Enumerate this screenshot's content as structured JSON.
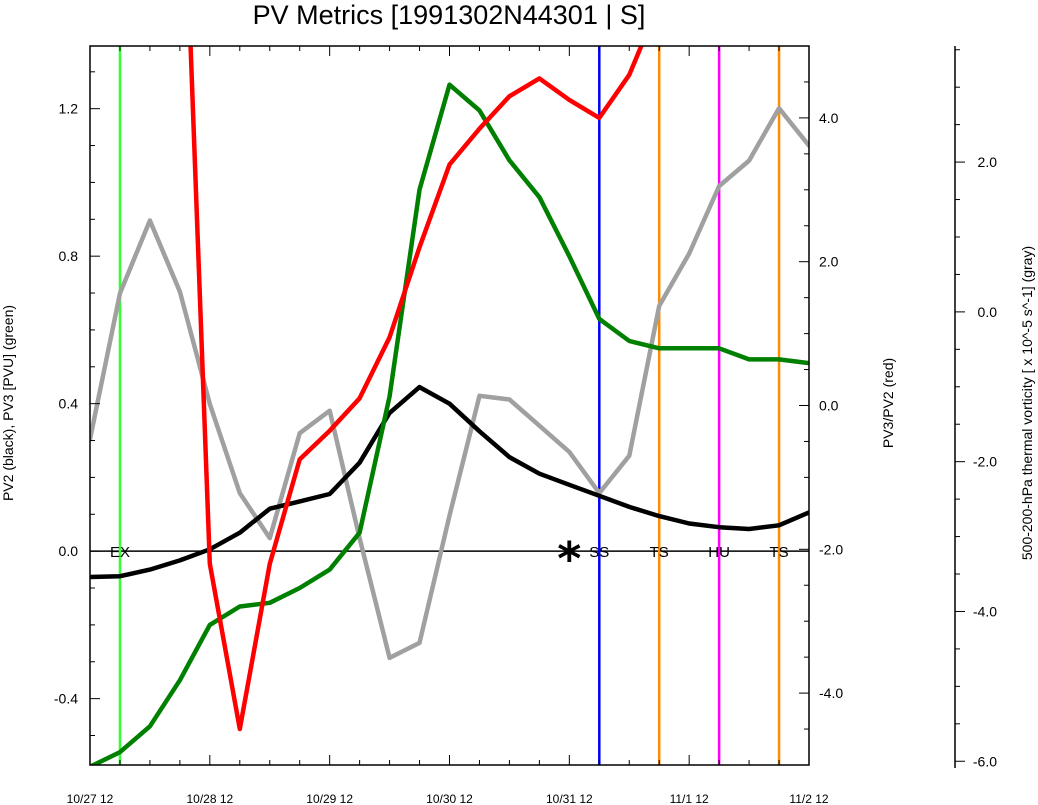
{
  "chart_data": {
    "type": "line",
    "title": "PV Metrics [1991302N44301 | S]",
    "x_tick_labels": [
      "10/27 12",
      "10/28 12",
      "10/29 12",
      "10/30 12",
      "10/31 12",
      "11/1 12",
      "11/2 12"
    ],
    "x_range": [
      0,
      6
    ],
    "axes": {
      "left": {
        "label": "PV2 (black), PV3 [PVU] (green)",
        "range": [
          -0.58,
          1.37
        ],
        "ticks": [
          "-0.4",
          "0.0",
          "0.4",
          "0.8",
          "1.2"
        ]
      },
      "right": {
        "label": "PV3/PV2 (red)",
        "range": [
          -5.0,
          5.0
        ],
        "ticks": [
          "-4.0",
          "-2.0",
          "0.0",
          "2.0",
          "4.0"
        ]
      },
      "right2": {
        "label": "500-200-hPa thermal vorticity [ x 10^-5 s^-1] (gray)",
        "range": [
          -6.05,
          3.55
        ],
        "ticks": [
          "-6.0",
          "-4.0",
          "-2.0",
          "0.0",
          "2.0"
        ]
      }
    },
    "x": [
      0,
      0.25,
      0.5,
      0.75,
      1.0,
      1.25,
      1.5,
      1.75,
      2.0,
      2.25,
      2.5,
      2.75,
      3.0,
      3.25,
      3.5,
      3.75,
      4.0,
      4.25,
      4.5,
      4.75,
      5.0,
      5.25,
      5.5,
      5.75,
      6.0
    ],
    "series": [
      {
        "name": "PV2",
        "color": "#000000",
        "axis": "left",
        "values": [
          -0.07,
          -0.068,
          -0.05,
          -0.025,
          0.005,
          0.05,
          0.115,
          0.135,
          0.155,
          0.24,
          0.375,
          0.445,
          0.4,
          0.325,
          0.255,
          0.21,
          0.18,
          0.15,
          0.12,
          0.095,
          0.075,
          0.065,
          0.06,
          0.07,
          0.105
        ]
      },
      {
        "name": "PV3",
        "color": "#008000",
        "axis": "left",
        "values": [
          -0.585,
          -0.545,
          -0.475,
          -0.35,
          -0.2,
          -0.15,
          -0.14,
          -0.1,
          -0.05,
          0.05,
          0.42,
          0.98,
          1.265,
          1.195,
          1.06,
          0.96,
          0.8,
          0.63,
          0.57,
          0.55,
          0.55,
          0.55,
          0.52,
          0.52,
          0.51
        ]
      },
      {
        "name": "PV3/PV2",
        "color": "#ff0000",
        "axis": "right",
        "values": [
          null,
          null,
          null,
          9.0,
          -2.2,
          -4.5,
          -2.2,
          -0.75,
          -0.35,
          0.1,
          0.95,
          2.2,
          3.35,
          3.85,
          4.3,
          4.55,
          4.25,
          4.0,
          4.6,
          5.6,
          null,
          null,
          null,
          null,
          null
        ]
      },
      {
        "name": "thermal vorticity",
        "color": "#a0a0a0",
        "axis": "right2",
        "values": [
          -1.7,
          0.25,
          1.22,
          0.27,
          -1.23,
          -2.42,
          -3.02,
          -1.62,
          -1.32,
          -3.02,
          -4.62,
          -4.42,
          -2.72,
          -1.12,
          -1.17,
          -1.52,
          -1.87,
          -2.42,
          -1.92,
          0.08,
          0.78,
          1.68,
          2.02,
          2.72,
          2.22
        ]
      }
    ],
    "event_lines": [
      {
        "x": 0.25,
        "color": "#33ff33",
        "label": "EX"
      },
      {
        "x": 4.25,
        "color": "#0000ff",
        "label": "SS"
      },
      {
        "x": 4.75,
        "color": "#ff8c00",
        "label": "TS"
      },
      {
        "x": 5.25,
        "color": "#ff00ff",
        "label": "HU"
      },
      {
        "x": 5.75,
        "color": "#ff8c00",
        "label": "TS"
      }
    ],
    "marker": {
      "x": 4.0,
      "y": 0.0,
      "symbol": "*"
    },
    "zero_line_left_value": 0.0,
    "grid": false
  }
}
